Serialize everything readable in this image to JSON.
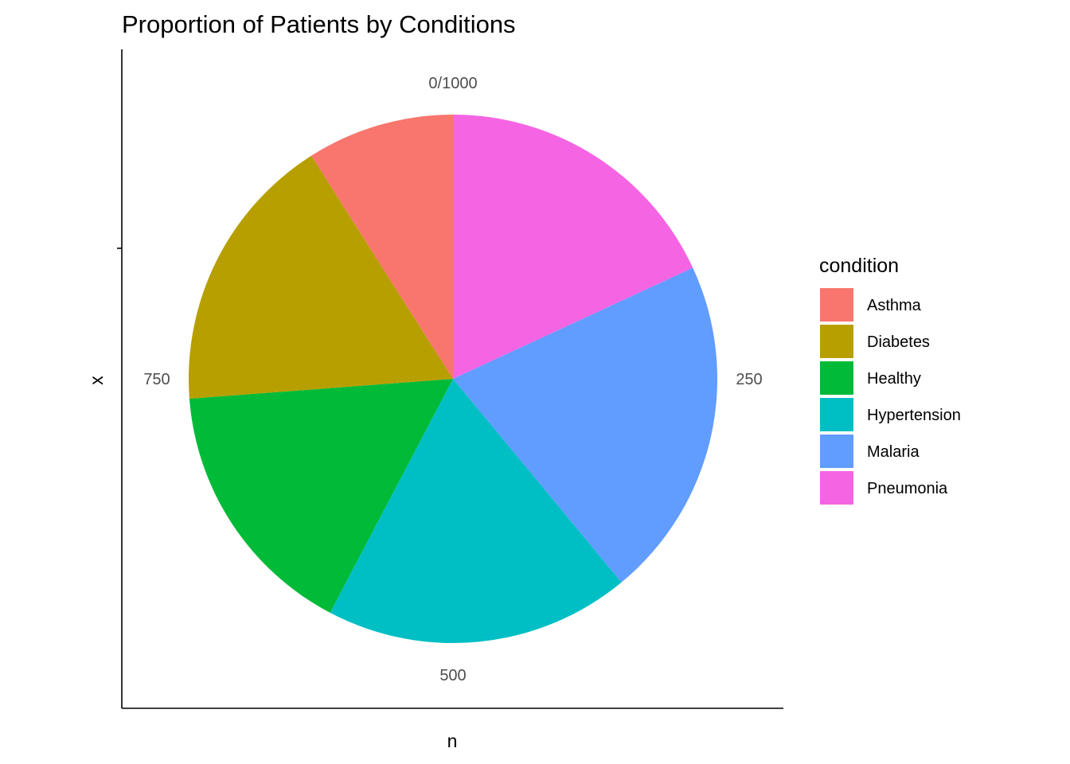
{
  "chart_data": {
    "type": "pie",
    "title": "Proportion of Patients by Conditions",
    "xlabel": "n",
    "ylabel": "x",
    "total": 1000,
    "angle_ticks": [
      {
        "value": 0,
        "label": "0/1000"
      },
      {
        "value": 250,
        "label": "250"
      },
      {
        "value": 500,
        "label": "500"
      },
      {
        "value": 750,
        "label": "750"
      }
    ],
    "legend": {
      "title": "condition",
      "position": "right"
    },
    "slices": [
      {
        "label": "Pneumonia",
        "value": 181,
        "color": "#F564E3"
      },
      {
        "label": "Malaria",
        "value": 209,
        "color": "#619CFF"
      },
      {
        "label": "Hypertension",
        "value": 187,
        "color": "#00BFC4"
      },
      {
        "label": "Healthy",
        "value": 161,
        "color": "#00BA38"
      },
      {
        "label": "Diabetes",
        "value": 172,
        "color": "#B79F00"
      },
      {
        "label": "Asthma",
        "value": 90,
        "color": "#F8766D"
      }
    ],
    "legend_order": [
      "Asthma",
      "Diabetes",
      "Healthy",
      "Hypertension",
      "Malaria",
      "Pneumonia"
    ]
  }
}
